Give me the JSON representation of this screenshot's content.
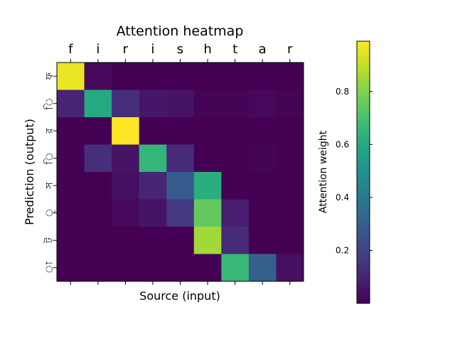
{
  "chart_data": {
    "type": "heatmap",
    "title": "Attention heatmap",
    "xlabel": "Source (input)",
    "ylabel": "Prediction (output)",
    "x_tick_labels": [
      "f",
      "i",
      "r",
      "i",
      "s",
      "h",
      "t",
      "a",
      "r"
    ],
    "y_tick_labels": [
      "ফ",
      "ি",
      "র",
      "ি",
      "স",
      "্",
      "ট",
      "া"
    ],
    "values": [
      [
        0.96,
        0.02,
        0.0,
        0.0,
        0.0,
        0.0,
        0.0,
        0.0,
        0.0
      ],
      [
        0.1,
        0.6,
        0.13,
        0.06,
        0.05,
        0.01,
        0.01,
        0.02,
        0.01
      ],
      [
        0.0,
        0.0,
        0.99,
        0.0,
        0.0,
        0.0,
        0.0,
        0.0,
        0.0
      ],
      [
        0.0,
        0.13,
        0.05,
        0.65,
        0.12,
        0.0,
        0.0,
        0.01,
        0.0
      ],
      [
        0.0,
        0.0,
        0.04,
        0.1,
        0.28,
        0.62,
        0.0,
        0.0,
        0.0
      ],
      [
        0.0,
        0.0,
        0.02,
        0.05,
        0.16,
        0.75,
        0.08,
        0.0,
        0.0
      ],
      [
        0.0,
        0.0,
        0.0,
        0.0,
        0.0,
        0.85,
        0.12,
        0.0,
        0.0
      ],
      [
        0.0,
        0.0,
        0.0,
        0.0,
        0.0,
        0.0,
        0.66,
        0.3,
        0.04
      ]
    ],
    "colormap": "viridis",
    "colorbar": {
      "label": "Attention weight",
      "ticks": [
        0.2,
        0.4,
        0.6,
        0.8
      ],
      "range": [
        0.0,
        0.99
      ]
    }
  }
}
